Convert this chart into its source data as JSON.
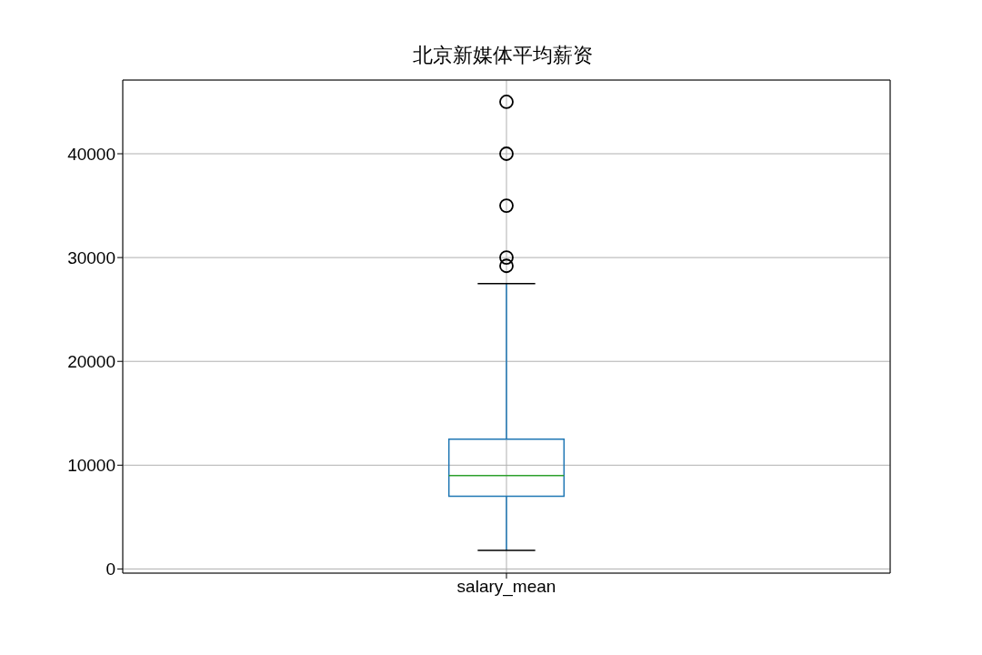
{
  "chart_data": {
    "type": "box",
    "title": "北京新媒体平均薪资",
    "categories": [
      "salary_mean"
    ],
    "series": [
      {
        "color": "#1f77b4",
        "boxes": [
          {
            "low": 1800,
            "q1": 7000,
            "median": 9000,
            "q3": 12500,
            "high": 27500,
            "outliers": [
              29200,
              30000,
              35000,
              40000,
              45000
            ]
          }
        ]
      }
    ],
    "ylim": [
      -400,
      47100
    ],
    "yticks": [
      0,
      10000,
      20000,
      30000,
      40000
    ],
    "grid": true
  }
}
